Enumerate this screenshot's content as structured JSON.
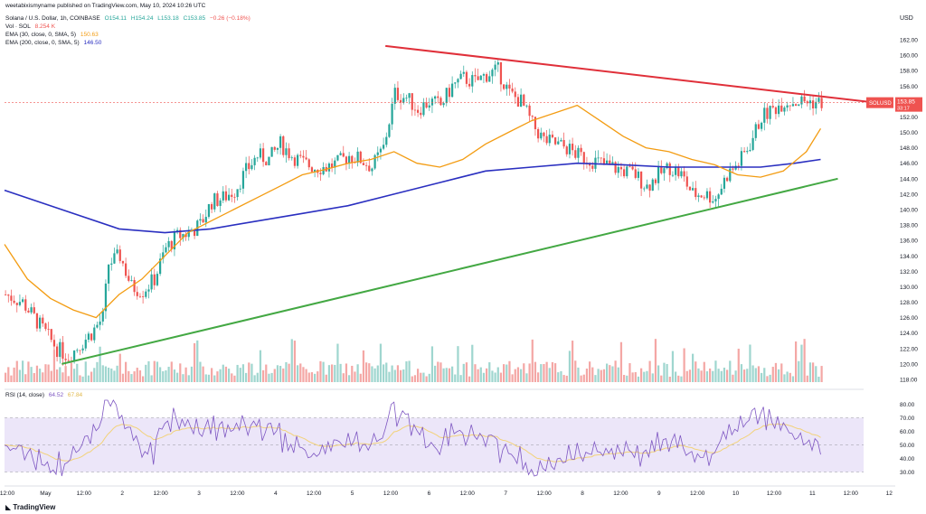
{
  "header": {
    "author": "weetabixismyname published on TradingView.com, May 10, 2024 10:26 UTC",
    "symbol_line": "Solana / U.S. Dollar, 1h, COINBASE",
    "ohlc": {
      "o": "O154.11",
      "h": "H154.24",
      "l": "L153.18",
      "c": "C153.85",
      "chg": "−0.26 (−0.18%)"
    },
    "vol_label": "Vol · SOL",
    "vol_value": "8.254 K",
    "ema30_label": "EMA (30, close, 0, SMA, 5)",
    "ema30_value": "150.63",
    "ema200_label": "EMA (200, close, 0, SMA, 5)",
    "ema200_value": "146.50",
    "rsi_label": "RSI (14, close)",
    "rsi_value": "64.52",
    "rsi_ma_value": "67.84",
    "currency": "USD",
    "price_tag_symbol": "SOLUSD",
    "price_tag_value": "153.85",
    "price_tag_time": "33:17",
    "footer": "TradingView"
  },
  "colors": {
    "up": "#26a69a",
    "down": "#ef5350",
    "ema30": "#f39c12",
    "ema200": "#2a2fc0",
    "resistance": "#e0303a",
    "support": "#43a843",
    "rsi": "#7e57c2",
    "rsi_ma": "#f2d27a",
    "rsi_band": "#ece6f9"
  },
  "chart_data": {
    "type": "candlestick",
    "y_axis": {
      "min": 118,
      "max": 162,
      "ticks": [
        118,
        120,
        122,
        124,
        126,
        128,
        130,
        132,
        134,
        136,
        138,
        140,
        142,
        144,
        146,
        148,
        150,
        152,
        154,
        156,
        158,
        160,
        162
      ],
      "unit": "USD"
    },
    "x_axis": {
      "labels": [
        "12:00",
        "May",
        "12:00",
        "2",
        "12:00",
        "3",
        "12:00",
        "4",
        "12:00",
        "5",
        "12:00",
        "6",
        "12:00",
        "7",
        "12:00",
        "8",
        "12:00",
        "9",
        "12:00",
        "10",
        "12:00",
        "11",
        "12:00",
        "12"
      ]
    },
    "ema30_points": [
      [
        0,
        135.5
      ],
      [
        8,
        131
      ],
      [
        16,
        128.5
      ],
      [
        24,
        127
      ],
      [
        32,
        126
      ],
      [
        40,
        129
      ],
      [
        48,
        131
      ],
      [
        56,
        134
      ],
      [
        64,
        137
      ],
      [
        72,
        138.5
      ],
      [
        80,
        140
      ],
      [
        88,
        141.5
      ],
      [
        96,
        143
      ],
      [
        104,
        144.5
      ],
      [
        112,
        145.2
      ],
      [
        120,
        146
      ],
      [
        128,
        146.5
      ],
      [
        136,
        147.5
      ],
      [
        144,
        146
      ],
      [
        152,
        145.5
      ],
      [
        160,
        146.5
      ],
      [
        168,
        148.5
      ],
      [
        176,
        150
      ],
      [
        184,
        151.5
      ],
      [
        192,
        152.5
      ],
      [
        200,
        153.5
      ],
      [
        208,
        151.5
      ],
      [
        216,
        149.5
      ],
      [
        224,
        148
      ],
      [
        232,
        147.5
      ],
      [
        240,
        146.5
      ],
      [
        248,
        145.8
      ],
      [
        256,
        144.5
      ],
      [
        264,
        144.2
      ],
      [
        272,
        145
      ],
      [
        280,
        147.5
      ],
      [
        285,
        150.5
      ]
    ],
    "ema200_points": [
      [
        0,
        142.5
      ],
      [
        20,
        140
      ],
      [
        40,
        137.5
      ],
      [
        56,
        137
      ],
      [
        72,
        137.5
      ],
      [
        88,
        138.5
      ],
      [
        104,
        139.5
      ],
      [
        120,
        140.5
      ],
      [
        136,
        142
      ],
      [
        152,
        143.5
      ],
      [
        168,
        145
      ],
      [
        184,
        145.5
      ],
      [
        200,
        146
      ],
      [
        216,
        145.8
      ],
      [
        232,
        145.5
      ],
      [
        248,
        145.5
      ],
      [
        264,
        145.5
      ],
      [
        276,
        146
      ],
      [
        285,
        146.5
      ]
    ],
    "resistance_line": [
      [
        133,
        161.2
      ],
      [
        310,
        153.6
      ]
    ],
    "support_line": [
      [
        20,
        120
      ],
      [
        291,
        144
      ]
    ],
    "last_price_line": 153.85,
    "candles_seed": "generated from path",
    "rsi": {
      "ticks": [
        30,
        40,
        50,
        60,
        70,
        80
      ],
      "band": [
        30,
        70
      ]
    }
  }
}
